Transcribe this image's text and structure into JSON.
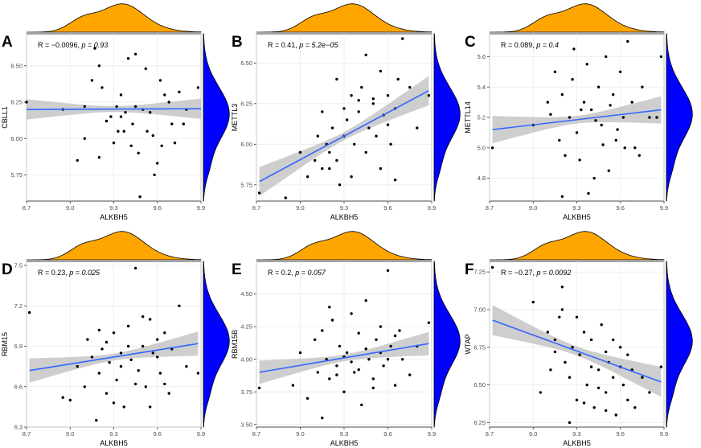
{
  "figure": {
    "colors": {
      "top_density": "#FFA500",
      "right_density": "#0000FF",
      "regression_line": "#3366FF",
      "confidence_band": "#BDBDBD",
      "points": "#000000",
      "grid": "#EBEBEB"
    }
  },
  "chart_data": [
    {
      "type": "scatter",
      "panel": "A",
      "xlabel": "ALKBH5",
      "ylabel": "CBLL1",
      "annotation": {
        "r_label": "R = −0.0096,",
        "p_label": "p = 0.93",
        "r": -0.0096,
        "p": 0.93
      },
      "xlim": [
        8.7,
        9.9
      ],
      "ylim": [
        5.57,
        6.72
      ],
      "xticks": [
        "8.7",
        "9.0",
        "9.3",
        "9.6",
        "9.9"
      ],
      "yticks": [
        "5.75",
        "6.00",
        "6.25",
        "6.50"
      ],
      "fit": {
        "x0": 8.7,
        "y0": 6.2,
        "x1": 9.9,
        "y1": 6.205
      },
      "band": {
        "w_end": 0.07,
        "w_mid": 0.02
      },
      "points": [
        [
          8.7,
          6.25
        ],
        [
          8.95,
          6.2
        ],
        [
          9.05,
          5.85
        ],
        [
          9.1,
          6.0
        ],
        [
          9.15,
          6.4
        ],
        [
          9.17,
          6.62
        ],
        [
          9.2,
          6.5
        ],
        [
          9.22,
          6.35
        ],
        [
          9.25,
          6.12
        ],
        [
          9.28,
          6.15
        ],
        [
          9.3,
          5.97
        ],
        [
          9.32,
          6.22
        ],
        [
          9.35,
          6.3
        ],
        [
          9.37,
          6.05
        ],
        [
          9.4,
          6.55
        ],
        [
          9.42,
          5.95
        ],
        [
          9.45,
          6.58
        ],
        [
          9.47,
          5.9
        ],
        [
          9.5,
          6.2
        ],
        [
          9.52,
          6.48
        ],
        [
          9.55,
          6.18
        ],
        [
          9.57,
          6.02
        ],
        [
          9.6,
          5.83
        ],
        [
          9.62,
          6.4
        ],
        [
          9.65,
          6.3
        ],
        [
          9.68,
          6.25
        ],
        [
          9.7,
          6.1
        ],
        [
          9.75,
          6.32
        ],
        [
          9.8,
          6.2
        ],
        [
          9.88,
          6.35
        ],
        [
          9.1,
          6.22
        ],
        [
          9.2,
          5.87
        ],
        [
          9.33,
          6.05
        ],
        [
          9.38,
          6.18
        ],
        [
          9.43,
          6.1
        ],
        [
          9.48,
          5.6
        ],
        [
          9.53,
          6.05
        ],
        [
          9.58,
          5.75
        ],
        [
          9.63,
          5.95
        ],
        [
          9.72,
          5.97
        ],
        [
          9.78,
          6.1
        ],
        [
          9.45,
          6.22
        ],
        [
          9.35,
          6.15
        ]
      ]
    },
    {
      "type": "scatter",
      "panel": "B",
      "xlabel": "ALKBH5",
      "ylabel": "METTL3",
      "annotation": {
        "r_label": "R = 0.41,",
        "p_label": "p = 5.2e−05",
        "r": 0.41,
        "p": 5.2e-05
      },
      "xlim": [
        8.7,
        9.9
      ],
      "ylim": [
        5.65,
        6.68
      ],
      "xticks": [
        "8.7",
        "9.0",
        "9.3",
        "9.6",
        "9.9"
      ],
      "yticks": [
        "5.75",
        "6.00",
        "6.25",
        "6.50"
      ],
      "fit": {
        "x0": 8.72,
        "y0": 5.77,
        "x1": 9.88,
        "y1": 6.33
      },
      "band": {
        "w_end": 0.09,
        "w_mid": 0.025
      },
      "points": [
        [
          8.72,
          5.7
        ],
        [
          8.9,
          5.67
        ],
        [
          9.0,
          5.95
        ],
        [
          9.05,
          5.8
        ],
        [
          9.1,
          5.9
        ],
        [
          9.12,
          6.05
        ],
        [
          9.15,
          5.85
        ],
        [
          9.18,
          6.0
        ],
        [
          9.2,
          5.95
        ],
        [
          9.22,
          6.1
        ],
        [
          9.25,
          6.4
        ],
        [
          9.27,
          5.75
        ],
        [
          9.3,
          6.05
        ],
        [
          9.32,
          6.15
        ],
        [
          9.35,
          6.3
        ],
        [
          9.37,
          6.0
        ],
        [
          9.4,
          6.2
        ],
        [
          9.42,
          6.35
        ],
        [
          9.45,
          6.55
        ],
        [
          9.47,
          6.1
        ],
        [
          9.5,
          6.25
        ],
        [
          9.52,
          6.05
        ],
        [
          9.55,
          6.45
        ],
        [
          9.57,
          6.18
        ],
        [
          9.6,
          6.3
        ],
        [
          9.62,
          6.0
        ],
        [
          9.65,
          6.22
        ],
        [
          9.67,
          6.4
        ],
        [
          9.7,
          6.65
        ],
        [
          9.75,
          6.35
        ],
        [
          9.8,
          6.1
        ],
        [
          9.88,
          6.3
        ],
        [
          9.15,
          6.2
        ],
        [
          9.25,
          5.9
        ],
        [
          9.35,
          5.8
        ],
        [
          9.45,
          5.95
        ],
        [
          9.55,
          5.85
        ],
        [
          9.65,
          5.78
        ],
        [
          9.4,
          6.27
        ],
        [
          9.5,
          6.28
        ],
        [
          9.6,
          6.12
        ],
        [
          9.3,
          6.22
        ],
        [
          9.2,
          5.85
        ]
      ]
    },
    {
      "type": "scatter",
      "panel": "C",
      "xlabel": "ALKBH5",
      "ylabel": "METTL14",
      "annotation": {
        "r_label": "R = 0.089,",
        "p_label": "p = 0.4",
        "r": 0.089,
        "p": 0.4
      },
      "xlim": [
        8.7,
        9.9
      ],
      "ylim": [
        4.65,
        5.75
      ],
      "xticks": [
        "8.7",
        "9.0",
        "9.3",
        "9.6",
        "9.9"
      ],
      "yticks": [
        "4.8",
        "5.0",
        "5.2",
        "5.4",
        "5.6"
      ],
      "fit": {
        "x0": 8.72,
        "y0": 5.12,
        "x1": 9.88,
        "y1": 5.25
      },
      "band": {
        "w_end": 0.09,
        "w_mid": 0.025
      },
      "points": [
        [
          8.72,
          5.0
        ],
        [
          9.0,
          5.15
        ],
        [
          9.1,
          5.3
        ],
        [
          9.15,
          5.5
        ],
        [
          9.18,
          5.05
        ],
        [
          9.2,
          5.35
        ],
        [
          9.22,
          4.95
        ],
        [
          9.25,
          5.2
        ],
        [
          9.27,
          5.45
        ],
        [
          9.3,
          5.1
        ],
        [
          9.32,
          4.92
        ],
        [
          9.35,
          5.3
        ],
        [
          9.37,
          5.55
        ],
        [
          9.4,
          5.25
        ],
        [
          9.42,
          4.8
        ],
        [
          9.45,
          5.4
        ],
        [
          9.47,
          5.15
        ],
        [
          9.5,
          5.6
        ],
        [
          9.52,
          4.85
        ],
        [
          9.55,
          5.35
        ],
        [
          9.57,
          5.05
        ],
        [
          9.6,
          5.5
        ],
        [
          9.62,
          5.2
        ],
        [
          9.65,
          5.7
        ],
        [
          9.68,
          5.3
        ],
        [
          9.7,
          5.0
        ],
        [
          9.75,
          5.4
        ],
        [
          9.8,
          5.2
        ],
        [
          9.85,
          5.2
        ],
        [
          9.88,
          5.6
        ],
        [
          9.12,
          5.22
        ],
        [
          9.28,
          5.65
        ],
        [
          9.38,
          4.7
        ],
        [
          9.48,
          5.02
        ],
        [
          9.58,
          5.12
        ],
        [
          9.33,
          5.25
        ],
        [
          9.43,
          5.18
        ],
        [
          9.53,
          5.28
        ],
        [
          9.63,
          5.0
        ],
        [
          9.73,
          4.95
        ],
        [
          9.2,
          4.68
        ]
      ]
    },
    {
      "type": "scatter",
      "panel": "D",
      "xlabel": "ALKBH5",
      "ylabel": "RBM15",
      "annotation": {
        "r_label": "R = 0.23,",
        "p_label": "p = 0.025",
        "r": 0.23,
        "p": 0.025
      },
      "xlim": [
        8.7,
        9.9
      ],
      "ylim": [
        6.3,
        7.53
      ],
      "xticks": [
        "8.7",
        "9.0",
        "9.3",
        "9.6",
        "9.9"
      ],
      "yticks": [
        "6.3",
        "6.6",
        "6.9",
        "7.2",
        "7.5"
      ],
      "fit": {
        "x0": 8.72,
        "y0": 6.72,
        "x1": 9.88,
        "y1": 6.92
      },
      "band": {
        "w_end": 0.09,
        "w_mid": 0.025
      },
      "points": [
        [
          8.72,
          7.15
        ],
        [
          8.95,
          6.52
        ],
        [
          9.0,
          6.5
        ],
        [
          9.05,
          6.75
        ],
        [
          9.1,
          6.6
        ],
        [
          9.12,
          6.95
        ],
        [
          9.15,
          6.82
        ],
        [
          9.18,
          6.35
        ],
        [
          9.2,
          6.7
        ],
        [
          9.22,
          6.88
        ],
        [
          9.25,
          6.55
        ],
        [
          9.27,
          6.78
        ],
        [
          9.3,
          7.0
        ],
        [
          9.32,
          6.65
        ],
        [
          9.35,
          6.85
        ],
        [
          9.37,
          6.45
        ],
        [
          9.4,
          7.05
        ],
        [
          9.42,
          6.8
        ],
        [
          9.45,
          7.48
        ],
        [
          9.47,
          6.72
        ],
        [
          9.5,
          6.9
        ],
        [
          9.52,
          6.6
        ],
        [
          9.55,
          7.1
        ],
        [
          9.57,
          6.85
        ],
        [
          9.6,
          6.95
        ],
        [
          9.62,
          6.7
        ],
        [
          9.65,
          7.0
        ],
        [
          9.68,
          6.55
        ],
        [
          9.7,
          6.88
        ],
        [
          9.75,
          7.2
        ],
        [
          9.8,
          6.75
        ],
        [
          9.88,
          6.7
        ],
        [
          9.25,
          6.93
        ],
        [
          9.35,
          6.75
        ],
        [
          9.45,
          6.62
        ],
        [
          9.55,
          6.45
        ],
        [
          9.65,
          6.62
        ],
        [
          9.4,
          6.9
        ],
        [
          9.5,
          7.12
        ],
        [
          9.6,
          6.82
        ],
        [
          9.3,
          6.48
        ],
        [
          9.2,
          7.02
        ]
      ]
    },
    {
      "type": "scatter",
      "panel": "E",
      "xlabel": "ALKBH5",
      "ylabel": "RBM15B",
      "annotation": {
        "r_label": "R = 0.2,",
        "p_label": "p = 0.057",
        "r": 0.2,
        "p": 0.057
      },
      "xlim": [
        8.7,
        9.9
      ],
      "ylim": [
        3.48,
        4.75
      ],
      "xticks": [
        "8.7",
        "9.0",
        "9.3",
        "9.6",
        "9.9"
      ],
      "yticks": [
        "3.50",
        "3.75",
        "4.00",
        "4.25",
        "4.50"
      ],
      "fit": {
        "x0": 8.72,
        "y0": 3.9,
        "x1": 9.88,
        "y1": 4.12
      },
      "band": {
        "w_end": 0.09,
        "w_mid": 0.025
      },
      "points": [
        [
          8.72,
          3.78
        ],
        [
          8.95,
          3.8
        ],
        [
          9.0,
          4.05
        ],
        [
          9.05,
          3.7
        ],
        [
          9.1,
          4.15
        ],
        [
          9.12,
          3.9
        ],
        [
          9.15,
          3.55
        ],
        [
          9.18,
          4.0
        ],
        [
          9.2,
          3.85
        ],
        [
          9.22,
          4.3
        ],
        [
          9.25,
          3.95
        ],
        [
          9.27,
          4.1
        ],
        [
          9.3,
          3.75
        ],
        [
          9.32,
          4.05
        ],
        [
          9.35,
          4.35
        ],
        [
          9.37,
          3.9
        ],
        [
          9.4,
          4.2
        ],
        [
          9.42,
          3.65
        ],
        [
          9.45,
          4.45
        ],
        [
          9.47,
          4.0
        ],
        [
          9.5,
          3.85
        ],
        [
          9.52,
          4.15
        ],
        [
          9.55,
          4.25
        ],
        [
          9.57,
          3.95
        ],
        [
          9.6,
          4.68
        ],
        [
          9.62,
          4.1
        ],
        [
          9.65,
          3.8
        ],
        [
          9.68,
          4.22
        ],
        [
          9.7,
          4.0
        ],
        [
          9.75,
          3.88
        ],
        [
          9.8,
          4.1
        ],
        [
          9.88,
          4.28
        ],
        [
          9.2,
          4.4
        ],
        [
          9.3,
          4.02
        ],
        [
          9.4,
          3.92
        ],
        [
          9.5,
          3.78
        ],
        [
          9.6,
          4.0
        ],
        [
          9.35,
          3.98
        ],
        [
          9.45,
          4.08
        ],
        [
          9.55,
          4.05
        ],
        [
          9.65,
          4.18
        ],
        [
          9.25,
          3.88
        ],
        [
          9.15,
          4.22
        ]
      ]
    },
    {
      "type": "scatter",
      "panel": "F",
      "xlabel": "ALKBH5",
      "ylabel": "WTAP",
      "annotation": {
        "r_label": "R = −0.27,",
        "p_label": "p = 0.0092",
        "r": -0.27,
        "p": 0.0092
      },
      "xlim": [
        8.7,
        9.9
      ],
      "ylim": [
        6.22,
        7.32
      ],
      "xticks": [
        "8.7",
        "9.0",
        "9.3",
        "9.6",
        "9.9"
      ],
      "yticks": [
        "6.25",
        "6.50",
        "6.75",
        "7.00",
        "7.25"
      ],
      "fit": {
        "x0": 8.72,
        "y0": 6.93,
        "x1": 9.88,
        "y1": 6.52
      },
      "band": {
        "w_end": 0.1,
        "w_mid": 0.03
      },
      "points": [
        [
          8.72,
          7.28
        ],
        [
          9.0,
          7.05
        ],
        [
          9.05,
          6.45
        ],
        [
          9.1,
          6.85
        ],
        [
          9.12,
          6.6
        ],
        [
          9.15,
          6.8
        ],
        [
          9.18,
          6.95
        ],
        [
          9.2,
          7.15
        ],
        [
          9.22,
          6.65
        ],
        [
          9.25,
          6.55
        ],
        [
          9.27,
          6.75
        ],
        [
          9.3,
          6.4
        ],
        [
          9.32,
          6.7
        ],
        [
          9.35,
          6.85
        ],
        [
          9.37,
          6.5
        ],
        [
          9.4,
          6.8
        ],
        [
          9.42,
          6.35
        ],
        [
          9.45,
          6.6
        ],
        [
          9.47,
          6.9
        ],
        [
          9.5,
          6.45
        ],
        [
          9.52,
          6.65
        ],
        [
          9.55,
          6.55
        ],
        [
          9.57,
          6.3
        ],
        [
          9.6,
          6.75
        ],
        [
          9.62,
          6.5
        ],
        [
          9.65,
          6.4
        ],
        [
          9.68,
          6.6
        ],
        [
          9.7,
          6.35
        ],
        [
          9.75,
          6.55
        ],
        [
          9.8,
          6.45
        ],
        [
          9.88,
          6.62
        ],
        [
          9.2,
          7.0
        ],
        [
          9.3,
          6.95
        ],
        [
          9.4,
          6.62
        ],
        [
          9.5,
          6.72
        ],
        [
          9.6,
          6.62
        ],
        [
          9.35,
          6.38
        ],
        [
          9.45,
          6.48
        ],
        [
          9.55,
          6.8
        ],
        [
          9.65,
          6.7
        ],
        [
          9.25,
          6.25
        ],
        [
          9.15,
          6.72
        ],
        [
          9.5,
          6.33
        ]
      ]
    }
  ]
}
